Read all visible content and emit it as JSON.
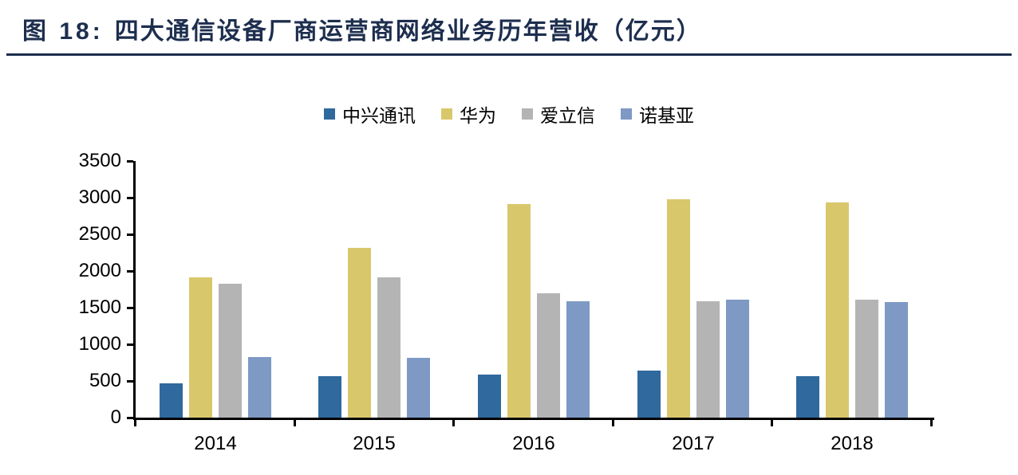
{
  "header": {
    "figure_label": "图 18:",
    "title": "四大通信设备厂商运营商网络业务历年营收（亿元）"
  },
  "colors": {
    "title_navy": "#1d2e4e",
    "axis": "#000000"
  },
  "chart_data": {
    "type": "bar",
    "title": "四大通信设备厂商运营商网络业务历年营收（亿元）",
    "xlabel": "",
    "ylabel": "",
    "categories": [
      "2014",
      "2015",
      "2016",
      "2017",
      "2018"
    ],
    "series": [
      {
        "name": "中兴通讯",
        "color": "#2f699d",
        "values": [
          470,
          570,
          590,
          640,
          570
        ]
      },
      {
        "name": "华为",
        "color": "#d9c86b",
        "values": [
          1910,
          2320,
          2910,
          2980,
          2940
        ]
      },
      {
        "name": "爱立信",
        "color": "#b4b4b4",
        "values": [
          1830,
          1910,
          1700,
          1590,
          1610
        ]
      },
      {
        "name": "诺基亚",
        "color": "#7e99c4",
        "values": [
          830,
          820,
          1590,
          1610,
          1580
        ]
      }
    ],
    "ylim": [
      0,
      3500
    ],
    "yticks": [
      0,
      500,
      1000,
      1500,
      2000,
      2500,
      3000,
      3500
    ],
    "legend_position": "top-center",
    "grid": false
  }
}
